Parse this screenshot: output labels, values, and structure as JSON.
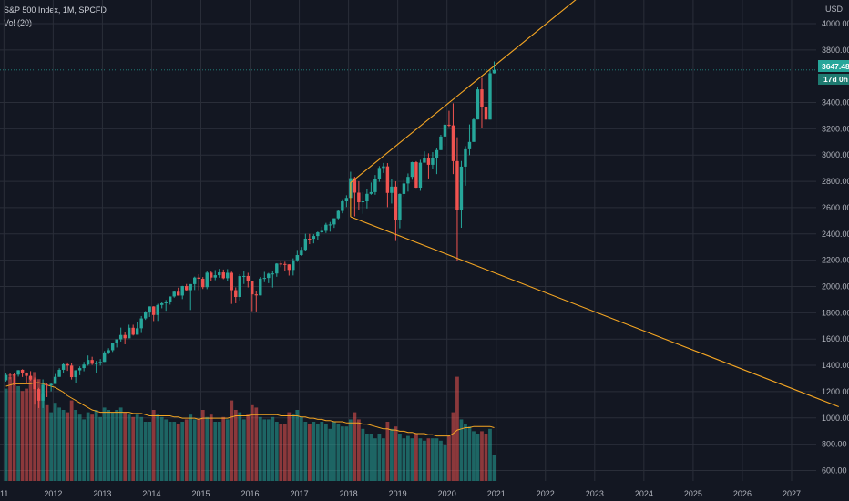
{
  "header": {
    "title": "S&P 500 Index, 1M, SPCFD",
    "indicator": "Vol (20)"
  },
  "price_axis": {
    "currency": "USD",
    "last_price": "3647.48",
    "countdown": "17d 0h"
  },
  "colors": {
    "background": "#131722",
    "up": "#26a69a",
    "down": "#ef5350",
    "trendline": "#f5a623",
    "volume_ma": "#f5a623",
    "price_tag": "#26a69a",
    "grid": "#2a2e39"
  },
  "chart_data": {
    "type": "candlestick",
    "interval": "monthly",
    "price_ticks": [
      "600.00",
      "800.00",
      "1000.00",
      "1200.00",
      "1400.00",
      "1600.00",
      "1800.00",
      "2000.00",
      "2200.00",
      "2400.00",
      "2600.00",
      "2800.00",
      "3000.00",
      "3200.00",
      "3400.00",
      "3800.00",
      "4000.00"
    ],
    "price_ylim": [
      520,
      4180
    ],
    "year_ticks": [
      "11",
      "2012",
      "2013",
      "2014",
      "2015",
      "2016",
      "2017",
      "2018",
      "2019",
      "2020",
      "2021",
      "2022",
      "2023",
      "2024",
      "2025",
      "2026",
      "2027"
    ],
    "x_start_year": 2010.92,
    "x_end_year": 2027.5,
    "candles_start": "2011-01",
    "ohlc": [
      [
        1286,
        1344,
        1276,
        1327
      ],
      [
        1328,
        1344,
        1294,
        1327
      ],
      [
        1329,
        1345,
        1249,
        1325
      ],
      [
        1329,
        1364,
        1314,
        1363
      ],
      [
        1366,
        1370,
        1311,
        1345
      ],
      [
        1345,
        1346,
        1258,
        1320
      ],
      [
        1320,
        1356,
        1283,
        1292
      ],
      [
        1292,
        1307,
        1101,
        1219
      ],
      [
        1219,
        1229,
        1075,
        1131
      ],
      [
        1131,
        1293,
        1075,
        1253
      ],
      [
        1253,
        1265,
        1158,
        1247
      ],
      [
        1247,
        1269,
        1202,
        1258
      ],
      [
        1258,
        1334,
        1258,
        1312
      ],
      [
        1312,
        1378,
        1312,
        1366
      ],
      [
        1366,
        1420,
        1340,
        1408
      ],
      [
        1408,
        1422,
        1358,
        1398
      ],
      [
        1398,
        1415,
        1292,
        1310
      ],
      [
        1310,
        1364,
        1267,
        1362
      ],
      [
        1362,
        1392,
        1325,
        1379
      ],
      [
        1379,
        1426,
        1355,
        1406
      ],
      [
        1406,
        1475,
        1397,
        1441
      ],
      [
        1441,
        1465,
        1403,
        1412
      ],
      [
        1412,
        1434,
        1343,
        1416
      ],
      [
        1416,
        1448,
        1398,
        1426
      ],
      [
        1426,
        1509,
        1426,
        1498
      ],
      [
        1498,
        1530,
        1485,
        1515
      ],
      [
        1515,
        1570,
        1502,
        1569
      ],
      [
        1569,
        1598,
        1536,
        1598
      ],
      [
        1598,
        1687,
        1581,
        1631
      ],
      [
        1631,
        1654,
        1560,
        1606
      ],
      [
        1606,
        1709,
        1606,
        1686
      ],
      [
        1686,
        1709,
        1627,
        1633
      ],
      [
        1633,
        1730,
        1633,
        1682
      ],
      [
        1682,
        1775,
        1646,
        1757
      ],
      [
        1757,
        1813,
        1746,
        1806
      ],
      [
        1806,
        1849,
        1768,
        1848
      ],
      [
        1848,
        1850,
        1737,
        1783
      ],
      [
        1783,
        1868,
        1738,
        1859
      ],
      [
        1859,
        1883,
        1834,
        1872
      ],
      [
        1872,
        1897,
        1815,
        1884
      ],
      [
        1884,
        1924,
        1862,
        1924
      ],
      [
        1924,
        1968,
        1915,
        1960
      ],
      [
        1960,
        1991,
        1930,
        1931
      ],
      [
        1931,
        2005,
        1904,
        2003
      ],
      [
        2003,
        2019,
        1964,
        1972
      ],
      [
        1972,
        2018,
        1821,
        2018
      ],
      [
        2018,
        2075,
        1973,
        2068
      ],
      [
        2068,
        2093,
        1972,
        2059
      ],
      [
        2059,
        2072,
        1981,
        1995
      ],
      [
        1995,
        2119,
        1980,
        2105
      ],
      [
        2105,
        2114,
        2039,
        2068
      ],
      [
        2068,
        2125,
        2048,
        2086
      ],
      [
        2086,
        2134,
        2067,
        2107
      ],
      [
        2107,
        2129,
        2056,
        2063
      ],
      [
        2063,
        2132,
        2044,
        2104
      ],
      [
        2104,
        2113,
        1867,
        1972
      ],
      [
        1972,
        1993,
        1872,
        1920
      ],
      [
        1920,
        2094,
        1893,
        2079
      ],
      [
        2079,
        2116,
        2019,
        2080
      ],
      [
        2080,
        2104,
        1993,
        2044
      ],
      [
        2044,
        2044,
        1812,
        1940
      ],
      [
        1940,
        1962,
        1810,
        1932
      ],
      [
        1932,
        2072,
        1932,
        2060
      ],
      [
        2060,
        2111,
        2033,
        2065
      ],
      [
        2065,
        2103,
        2025,
        2097
      ],
      [
        2097,
        2120,
        1992,
        2099
      ],
      [
        2099,
        2177,
        2074,
        2174
      ],
      [
        2174,
        2193,
        2147,
        2171
      ],
      [
        2171,
        2188,
        2119,
        2168
      ],
      [
        2168,
        2169,
        2083,
        2126
      ],
      [
        2126,
        2214,
        2084,
        2199
      ],
      [
        2199,
        2278,
        2187,
        2239
      ],
      [
        2239,
        2300,
        2233,
        2279
      ],
      [
        2279,
        2401,
        2267,
        2364
      ],
      [
        2364,
        2400,
        2322,
        2363
      ],
      [
        2363,
        2398,
        2328,
        2384
      ],
      [
        2384,
        2418,
        2353,
        2412
      ],
      [
        2412,
        2454,
        2405,
        2423
      ],
      [
        2423,
        2484,
        2407,
        2470
      ],
      [
        2470,
        2491,
        2417,
        2472
      ],
      [
        2472,
        2519,
        2446,
        2519
      ],
      [
        2519,
        2582,
        2511,
        2575
      ],
      [
        2575,
        2657,
        2557,
        2648
      ],
      [
        2648,
        2694,
        2605,
        2674
      ],
      [
        2674,
        2873,
        2674,
        2824
      ],
      [
        2824,
        2835,
        2533,
        2714
      ],
      [
        2714,
        2801,
        2585,
        2641
      ],
      [
        2641,
        2718,
        2553,
        2648
      ],
      [
        2648,
        2742,
        2594,
        2705
      ],
      [
        2705,
        2791,
        2698,
        2718
      ],
      [
        2718,
        2848,
        2698,
        2816
      ],
      [
        2816,
        2916,
        2796,
        2902
      ],
      [
        2902,
        2940,
        2864,
        2914
      ],
      [
        2914,
        2939,
        2604,
        2712
      ],
      [
        2712,
        2815,
        2631,
        2760
      ],
      [
        2760,
        2800,
        2346,
        2507
      ],
      [
        2507,
        2708,
        2443,
        2704
      ],
      [
        2704,
        2813,
        2681,
        2784
      ],
      [
        2784,
        2860,
        2722,
        2834
      ],
      [
        2834,
        2949,
        2812,
        2946
      ],
      [
        2946,
        2954,
        2750,
        2752
      ],
      [
        2752,
        2964,
        2728,
        2942
      ],
      [
        2942,
        3028,
        2952,
        2980
      ],
      [
        2980,
        3013,
        2822,
        2926
      ],
      [
        2926,
        3022,
        2892,
        2977
      ],
      [
        2977,
        3050,
        2855,
        3038
      ],
      [
        3038,
        3154,
        3038,
        3141
      ],
      [
        3141,
        3248,
        3070,
        3231
      ],
      [
        3231,
        3337,
        3214,
        3226
      ],
      [
        3226,
        3394,
        2855,
        2954
      ],
      [
        2954,
        3136,
        2192,
        2585
      ],
      [
        2585,
        2955,
        2447,
        2912
      ],
      [
        2912,
        3068,
        2767,
        3044
      ],
      [
        3044,
        3233,
        2999,
        3100
      ],
      [
        3100,
        3280,
        3101,
        3271
      ],
      [
        3271,
        3515,
        3271,
        3500
      ],
      [
        3500,
        3588,
        3209,
        3363
      ],
      [
        3363,
        3550,
        3233,
        3270
      ],
      [
        3270,
        3646,
        3270,
        3622
      ],
      [
        3622,
        3712,
        3620,
        3647
      ]
    ],
    "volume_note": "volume values in relative units (millions of contracts scale)",
    "volume": [
      78,
      88,
      90,
      80,
      76,
      78,
      88,
      92,
      86,
      74,
      64,
      58,
      66,
      62,
      60,
      58,
      68,
      60,
      56,
      52,
      58,
      56,
      60,
      54,
      62,
      60,
      58,
      60,
      62,
      58,
      56,
      54,
      56,
      54,
      50,
      50,
      60,
      56,
      54,
      52,
      50,
      50,
      48,
      50,
      52,
      56,
      52,
      52,
      60,
      54,
      56,
      50,
      50,
      54,
      52,
      68,
      60,
      58,
      52,
      56,
      64,
      62,
      54,
      52,
      52,
      54,
      50,
      48,
      48,
      58,
      56,
      60,
      54,
      50,
      48,
      50,
      48,
      50,
      48,
      44,
      50,
      48,
      46,
      46,
      52,
      58,
      52,
      44,
      40,
      40,
      36,
      40,
      36,
      50,
      44,
      46,
      40,
      36,
      38,
      36,
      40,
      36,
      34,
      36,
      36,
      36,
      34,
      30,
      38,
      58,
      88,
      52,
      48,
      46,
      42,
      40,
      42,
      40,
      44,
      22
    ],
    "volume_ma": [
      80,
      81,
      82,
      82,
      82,
      82,
      82,
      83,
      83,
      82,
      81,
      80,
      79,
      77,
      75,
      72,
      70,
      68,
      66,
      64,
      62,
      60,
      59,
      58,
      58,
      58,
      58,
      58,
      58,
      58,
      58,
      57,
      57,
      57,
      56,
      55,
      55,
      55,
      55,
      55,
      55,
      54,
      54,
      53,
      53,
      53,
      53,
      52,
      53,
      53,
      53,
      53,
      53,
      53,
      53,
      54,
      55,
      55,
      55,
      55,
      56,
      56,
      56,
      56,
      56,
      56,
      56,
      55,
      55,
      55,
      55,
      55,
      54,
      54,
      53,
      53,
      52,
      52,
      51,
      51,
      50,
      50,
      50,
      49,
      49,
      49,
      49,
      48,
      48,
      47,
      46,
      45,
      44,
      44,
      43,
      43,
      42,
      42,
      41,
      41,
      40,
      40,
      40,
      39,
      39,
      38,
      38,
      38,
      38,
      40,
      43,
      44,
      45,
      45,
      46,
      46,
      46,
      46,
      46,
      45
    ],
    "trendlines": [
      {
        "from": [
          "2018-01",
          2790
        ],
        "to": [
          "2022-09",
          4210
        ]
      },
      {
        "from": [
          "2018-01",
          2530
        ],
        "to": [
          "2027-12",
          1085
        ]
      },
      {
        "from": [
          "2018-01",
          2530
        ],
        "to": [
          "2018-01",
          2790
        ]
      }
    ]
  }
}
